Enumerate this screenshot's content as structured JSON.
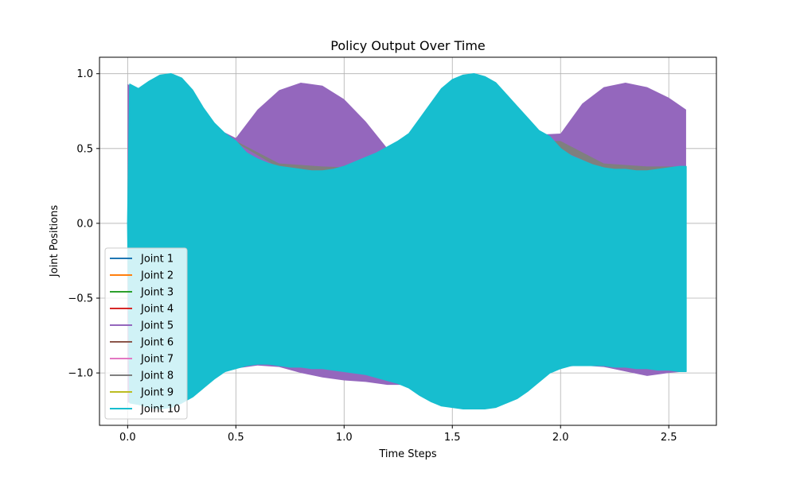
{
  "chart_data": {
    "type": "area",
    "title": "Policy Output Over Time",
    "xlabel": "Time Steps",
    "ylabel": "Joint Positions",
    "xlim": [
      -0.13,
      2.72
    ],
    "ylim": [
      -1.35,
      1.11
    ],
    "xticks": [
      "0.0",
      "0.5",
      "1.0",
      "1.5",
      "2.0",
      "2.5"
    ],
    "yticks": [
      "−1.0",
      "−0.5",
      "0.0",
      "0.5",
      "1.0"
    ],
    "grid": true,
    "legend_position": "lower-left",
    "series": [
      {
        "name": "Joint 1",
        "color": "#1f77b4"
      },
      {
        "name": "Joint 2",
        "color": "#ff7f0e"
      },
      {
        "name": "Joint 3",
        "color": "#2ca02c"
      },
      {
        "name": "Joint 4",
        "color": "#d62728"
      },
      {
        "name": "Joint 5",
        "color": "#9467bd",
        "x": [
          0.0,
          0.5,
          0.6,
          0.7,
          0.8,
          0.9,
          1.0,
          1.1,
          1.2,
          1.3,
          2.0,
          2.1,
          2.2,
          2.3,
          2.4,
          2.5,
          2.58
        ],
        "upper": [
          0.93,
          0.57,
          0.76,
          0.89,
          0.94,
          0.92,
          0.83,
          0.68,
          0.5,
          0.55,
          0.6,
          0.8,
          0.91,
          0.94,
          0.91,
          0.84,
          0.76
        ],
        "lower": [
          -1.2,
          -0.97,
          -0.95,
          -0.96,
          -1.0,
          -1.03,
          -1.05,
          -1.06,
          -1.08,
          -1.08,
          -0.96,
          -0.95,
          -0.96,
          -0.99,
          -1.02,
          -1.0,
          -0.99
        ]
      },
      {
        "name": "Joint 6",
        "color": "#8c564b"
      },
      {
        "name": "Joint 7",
        "color": "#e377c2"
      },
      {
        "name": "Joint 8",
        "color": "#7f7f7f",
        "x": [
          0.5,
          0.7,
          0.9,
          1.1,
          1.3,
          2.0,
          2.2,
          2.4,
          2.58
        ],
        "upper": [
          0.55,
          0.4,
          0.38,
          0.37,
          0.55,
          0.55,
          0.4,
          0.38,
          0.38
        ]
      },
      {
        "name": "Joint 9",
        "color": "#bcbd22"
      },
      {
        "name": "Joint 10",
        "color": "#17becf",
        "x": [
          0.0,
          0.01,
          0.05,
          0.1,
          0.15,
          0.2,
          0.25,
          0.3,
          0.35,
          0.4,
          0.45,
          0.5,
          0.55,
          0.6,
          0.65,
          0.7,
          0.75,
          0.8,
          0.85,
          0.9,
          0.95,
          1.0,
          1.05,
          1.1,
          1.15,
          1.2,
          1.25,
          1.3,
          1.35,
          1.4,
          1.45,
          1.5,
          1.55,
          1.6,
          1.65,
          1.7,
          1.75,
          1.8,
          1.85,
          1.9,
          1.95,
          2.0,
          2.05,
          2.1,
          2.15,
          2.2,
          2.25,
          2.3,
          2.35,
          2.4,
          2.45,
          2.5,
          2.55,
          2.58
        ],
        "upper": [
          0.0,
          0.93,
          0.9,
          0.95,
          0.99,
          1.0,
          0.97,
          0.89,
          0.77,
          0.67,
          0.6,
          0.55,
          0.47,
          0.43,
          0.4,
          0.38,
          0.37,
          0.36,
          0.35,
          0.35,
          0.36,
          0.38,
          0.41,
          0.44,
          0.47,
          0.51,
          0.55,
          0.6,
          0.7,
          0.8,
          0.9,
          0.96,
          0.99,
          1.0,
          0.98,
          0.94,
          0.86,
          0.78,
          0.7,
          0.62,
          0.58,
          0.5,
          0.45,
          0.42,
          0.39,
          0.37,
          0.36,
          0.36,
          0.35,
          0.35,
          0.36,
          0.37,
          0.38,
          0.38
        ],
        "lower": [
          0.0,
          -1.2,
          -1.21,
          -1.23,
          -1.24,
          -1.23,
          -1.2,
          -1.16,
          -1.1,
          -1.04,
          -0.99,
          -0.97,
          -0.95,
          -0.94,
          -0.94,
          -0.95,
          -0.96,
          -0.96,
          -0.97,
          -0.97,
          -0.98,
          -0.99,
          -1.0,
          -1.01,
          -1.03,
          -1.05,
          -1.07,
          -1.1,
          -1.15,
          -1.19,
          -1.22,
          -1.23,
          -1.24,
          -1.24,
          -1.24,
          -1.23,
          -1.2,
          -1.17,
          -1.12,
          -1.06,
          -1.0,
          -0.97,
          -0.95,
          -0.95,
          -0.95,
          -0.95,
          -0.96,
          -0.96,
          -0.97,
          -0.97,
          -0.98,
          -0.98,
          -0.99,
          -0.99
        ]
      }
    ]
  }
}
